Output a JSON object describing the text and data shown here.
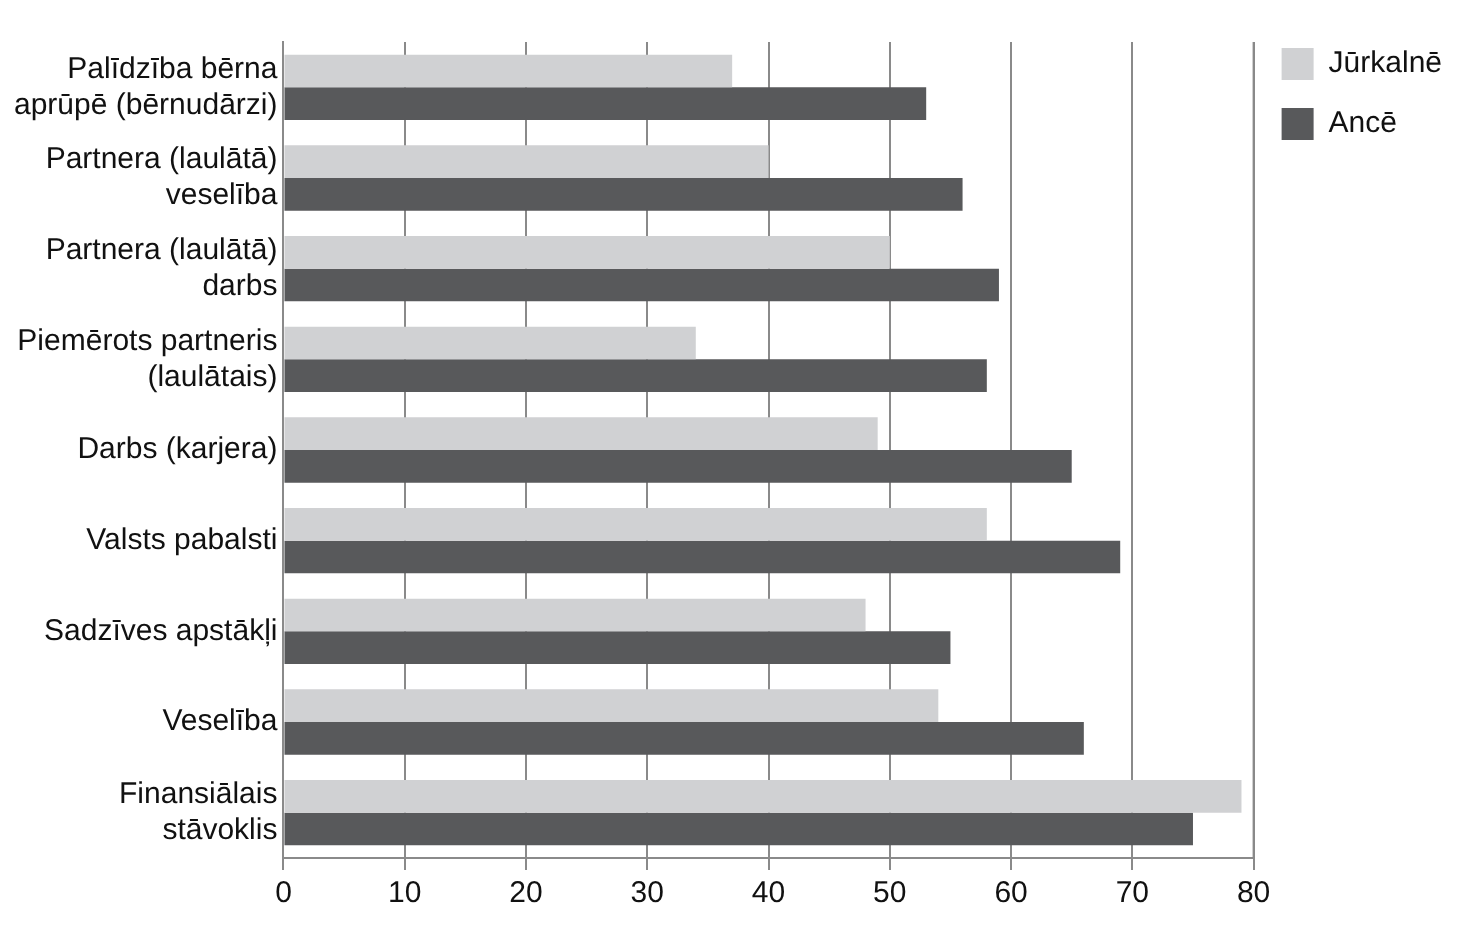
{
  "chart_data": {
    "type": "bar",
    "orientation": "horizontal",
    "categories": [
      "Palīdzība bērna aprūpē (bērnudārzi)",
      "Partnera (laulātā) veselība",
      "Partnera (laulātā) darbs",
      "Piemērots partneris (laulātais)",
      "Darbs (karjera)",
      "Valsts pabalsti",
      "Sadzīves apstākļi",
      "Veselība",
      "Finansiālais stāvoklis"
    ],
    "series": [
      {
        "name": "Jūrkalnē",
        "color": "#d0d1d3",
        "values": [
          37,
          40,
          50,
          34,
          49,
          58,
          48,
          54,
          79
        ]
      },
      {
        "name": "Ancē",
        "color": "#58595b",
        "values": [
          53,
          56,
          59,
          58,
          65,
          69,
          55,
          66,
          75
        ]
      }
    ],
    "xlim": [
      0,
      80
    ],
    "xticks": [
      0,
      10,
      20,
      30,
      40,
      50,
      60,
      70,
      80
    ],
    "grid": "x",
    "legend": "top right"
  }
}
